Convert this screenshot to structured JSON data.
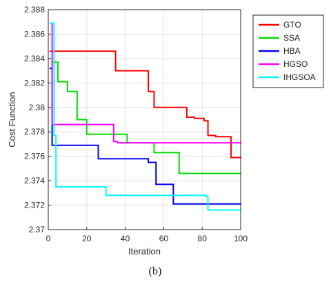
{
  "caption": "(b)",
  "chart_data": {
    "type": "line",
    "xlabel": "Iteration",
    "ylabel": "Cost Function",
    "xlim": [
      0,
      100
    ],
    "ylim": [
      2.37,
      2.388
    ],
    "xticks": [
      0,
      20,
      40,
      60,
      80,
      100
    ],
    "xtick_labels": [
      "0",
      "20",
      "40",
      "60",
      "80",
      "100"
    ],
    "yticks": [
      2.37,
      2.372,
      2.374,
      2.376,
      2.378,
      2.38,
      2.382,
      2.384,
      2.386,
      2.388
    ],
    "ytick_labels": [
      "2.37",
      "2.372",
      "2.374",
      "2.376",
      "2.378",
      "2.38",
      "2.382",
      "2.384",
      "2.386",
      "2.388"
    ],
    "grid": true,
    "legend_position": "right",
    "series": [
      {
        "name": "GTO",
        "color": "#ff0000",
        "x": [
          1,
          2,
          35,
          35,
          52,
          52,
          55,
          55,
          72,
          72,
          76,
          76,
          81,
          81,
          83,
          83,
          87,
          87,
          95,
          95,
          100
        ],
        "y": [
          2.3846,
          2.3846,
          2.3846,
          2.383,
          2.383,
          2.3813,
          2.3813,
          2.38,
          2.38,
          2.3792,
          2.3792,
          2.3791,
          2.3791,
          2.3789,
          2.3789,
          2.3777,
          2.3777,
          2.3776,
          2.3776,
          2.3759,
          2.3759
        ]
      },
      {
        "name": "SSA",
        "color": "#00dd00",
        "x": [
          1,
          2,
          2,
          5,
          5,
          8,
          8,
          10,
          10,
          15,
          15,
          20,
          20,
          37,
          37,
          41,
          41,
          55,
          55,
          68,
          68,
          100
        ],
        "y": [
          2.3832,
          2.3832,
          2.3837,
          2.3837,
          2.3821,
          2.3821,
          2.3821,
          2.3821,
          2.3813,
          2.3813,
          2.379,
          2.379,
          2.3778,
          2.3778,
          2.3778,
          2.3778,
          2.3771,
          2.3771,
          2.3763,
          2.3763,
          2.3746,
          2.3746
        ]
      },
      {
        "name": "HBA",
        "color": "#0000ee",
        "x": [
          1,
          2,
          2,
          26,
          26,
          52,
          52,
          56,
          56,
          65,
          65,
          100
        ],
        "y": [
          2.3832,
          2.3832,
          2.3769,
          2.3769,
          2.3758,
          2.3758,
          2.3755,
          2.3755,
          2.3737,
          2.3737,
          2.3721,
          2.3721
        ]
      },
      {
        "name": "HGSO",
        "color": "#ff00ff",
        "x": [
          1,
          2,
          2,
          34,
          34,
          36,
          36,
          100
        ],
        "y": [
          2.3869,
          2.3869,
          2.3786,
          2.3786,
          2.3772,
          2.3772,
          2.3771,
          2.3771
        ]
      },
      {
        "name": "IHGSOA",
        "color": "#00ffff",
        "x": [
          1,
          3,
          3,
          4,
          4,
          30,
          30,
          82,
          82,
          83,
          83,
          100
        ],
        "y": [
          2.3869,
          2.3869,
          2.3777,
          2.3777,
          2.3735,
          2.3735,
          2.3728,
          2.3728,
          2.3727,
          2.3727,
          2.3716,
          2.3716
        ]
      }
    ]
  }
}
